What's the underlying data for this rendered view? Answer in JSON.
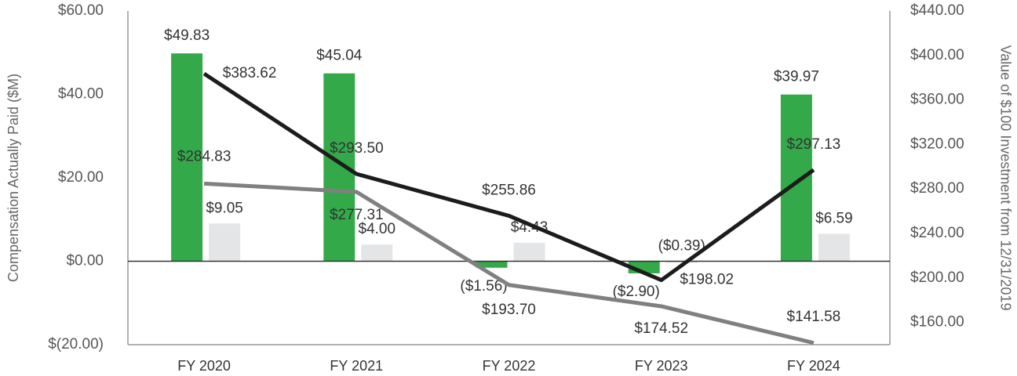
{
  "chart_data": {
    "type": "bar_line",
    "y_label": "Compensation Actually Paid ($M)",
    "y2_label": "Value of $100 Investment from 12/31/2019",
    "categories": [
      "FY 2020",
      "FY 2021",
      "FY 2022",
      "FY 2023",
      "FY 2024"
    ],
    "ylim": [
      -20,
      60
    ],
    "yticks": [
      {
        "value": -20,
        "label": "$(20.00)"
      },
      {
        "value": 0,
        "label": "$0.00"
      },
      {
        "value": 20,
        "label": "$20.00"
      },
      {
        "value": 40,
        "label": "$40.00"
      },
      {
        "value": 60,
        "label": "$60.00"
      }
    ],
    "y2lim": [
      140,
      440
    ],
    "y2ticks": [
      {
        "value": 160,
        "label": "$160.00"
      },
      {
        "value": 200,
        "label": "$200.00"
      },
      {
        "value": 240,
        "label": "$240.00"
      },
      {
        "value": 280,
        "label": "$280.00"
      },
      {
        "value": 320,
        "label": "$320.00"
      },
      {
        "value": 360,
        "label": "$360.00"
      },
      {
        "value": 400,
        "label": "$400.00"
      },
      {
        "value": 440,
        "label": "$440.00"
      }
    ],
    "series": [
      {
        "type": "bar",
        "color": "#33a94a",
        "values": [
          49.83,
          45.04,
          -1.56,
          -2.9,
          39.97
        ],
        "value_labels": [
          "$49.83",
          "$45.04",
          "($1.56)",
          "($2.90)",
          "$39.97"
        ]
      },
      {
        "type": "bar",
        "color": "#e4e5e7",
        "values": [
          9.05,
          4.0,
          4.43,
          -0.39,
          6.59
        ],
        "value_labels": [
          "$9.05",
          "$4.00",
          "$4.43",
          "($0.39)",
          "$6.59"
        ]
      },
      {
        "type": "line",
        "axis": "y2",
        "color": "#1c1c1c",
        "values": [
          383.62,
          293.5,
          255.86,
          198.02,
          297.13
        ],
        "value_labels": [
          "$383.62",
          "$293.50",
          "$255.86",
          "$198.02",
          "$297.13"
        ]
      },
      {
        "type": "line",
        "axis": "y2",
        "color": "#808080",
        "values": [
          284.83,
          277.31,
          193.7,
          174.52,
          141.58
        ],
        "value_labels": [
          "$284.83",
          "$277.31",
          "$193.70",
          "$174.52",
          "$141.58"
        ]
      }
    ]
  }
}
